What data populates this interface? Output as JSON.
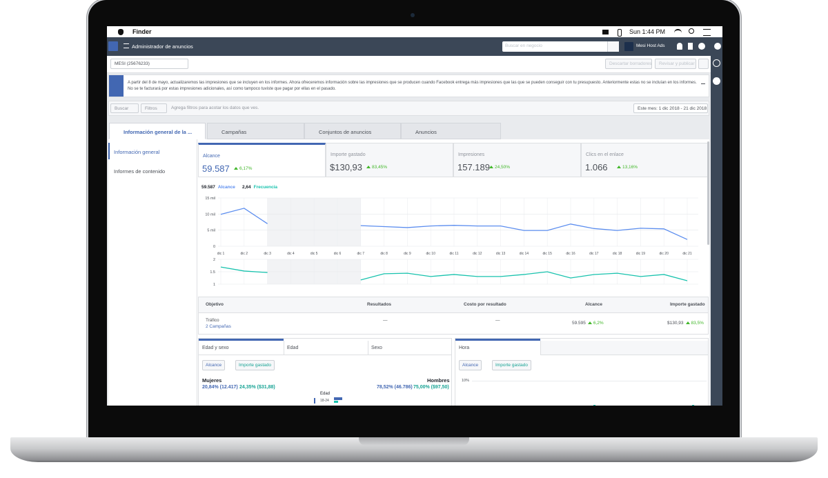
{
  "menubar": {
    "app": "Finder",
    "clock": "Sun 1:44 PM"
  },
  "header": {
    "title": "Administrador de anuncios",
    "search_placeholder": "Buscar en negocio",
    "account": "Mesi Host Ads"
  },
  "toolbar": {
    "account_select": "MESI (25676233)",
    "discard": "Descartar borradores",
    "review": "Revisar y publicar"
  },
  "notice": "A partir del 8 de mayo, actualizaremos las impresiones que se incluyen en los informes. Ahora ofreceremos información sobre las impresiones que se producen cuando Facebook entrega más impresiones que las que se pueden conseguir con tu presupuesto. Anteriormente estas no se incluían en los informes. No se te facturará por estas impresiones adicionales, así como tampoco tuviste que pagar por ellas en el pasado.",
  "filters": {
    "search": "Buscar",
    "filters": "Filtros",
    "hint": "Agrega filtros para acotar los datos que ves.",
    "date_range": "Este mes: 1 dic 2018 - 21 dic 2018"
  },
  "tabs": [
    "Información general de la ...",
    "Campañas",
    "Conjuntos de anuncios",
    "Anuncios"
  ],
  "sidenav": [
    "Información general",
    "Informes de contenido"
  ],
  "metrics": [
    {
      "label": "Alcance",
      "value": "59.587",
      "change": "6,17%"
    },
    {
      "label": "Importe gastado",
      "value": "$130,93",
      "change": "83,45%"
    },
    {
      "label": "Impresiones",
      "value": "157.189",
      "change": "24,50%"
    },
    {
      "label": "Clics en el enlace",
      "value": "1.066",
      "change": "13,16%"
    }
  ],
  "chart_data": {
    "type": "line",
    "categories": [
      "dic 1",
      "dic 2",
      "dic 3",
      "dic 4",
      "dic 5",
      "dic 6",
      "dic 7",
      "dic 8",
      "dic 9",
      "dic 10",
      "dic 11",
      "dic 12",
      "dic 13",
      "dic 14",
      "dic 15",
      "dic 16",
      "dic 17",
      "dic 18",
      "dic 19",
      "dic 20",
      "dic 21"
    ],
    "series": [
      {
        "name": "Alcance",
        "total": "59.587",
        "color": "#5b8def",
        "values": [
          9900,
          11800,
          7000,
          null,
          null,
          null,
          6400,
          6100,
          5800,
          6300,
          6500,
          6300,
          6300,
          4900,
          4900,
          6900,
          5500,
          4900,
          5600,
          5400,
          2100
        ]
      },
      {
        "name": "Frecuencia",
        "total": "2,64",
        "color": "#17c2ad",
        "axis": "y2",
        "values": [
          1.69,
          1.53,
          1.47,
          null,
          null,
          null,
          1.17,
          1.42,
          1.44,
          1.31,
          1.39,
          1.31,
          1.31,
          1.39,
          1.5,
          1.25,
          1.39,
          1.44,
          1.31,
          1.39,
          1.14
        ]
      }
    ],
    "ylim": [
      0,
      15000
    ],
    "yticks": [
      0,
      {
        "value": 5000,
        "label": "5 mil"
      },
      {
        "value": 10000,
        "label": "10 mil"
      },
      {
        "value": 15000,
        "label": "15 mil"
      }
    ],
    "y2lim": [
      1,
      2
    ],
    "y2ticks": [
      1,
      1.5,
      2
    ]
  },
  "table": {
    "headers": [
      "Objetivo",
      "Resultados",
      "Costo por resultado",
      "Alcance",
      "Importe gastado"
    ],
    "row": {
      "objective": "Tráfico",
      "campaigns": "2 Campañas",
      "results": "—",
      "cost": "—",
      "reach": "59.595",
      "reach_change": "6,2%",
      "spend": "$130,93",
      "spend_change": "83,5%"
    }
  },
  "breakdown": {
    "tabs": [
      "Edad y sexo",
      "Edad",
      "Sexo"
    ],
    "buttons": [
      "Alcance",
      "Importe gastado"
    ],
    "women": "Mujeres",
    "men": "Hombres",
    "women_reach": "20,84% (12.417)",
    "women_spend": "24,35% ($31,88)",
    "men_reach": "78,52% (46.786)",
    "men_spend": "75,00% ($97,50)",
    "age_label": "Edad",
    "age_first": "18-24"
  },
  "hour": {
    "tab": "Hora",
    "buttons": [
      "Alcance",
      "Importe gastado"
    ],
    "ytick": "10%"
  }
}
